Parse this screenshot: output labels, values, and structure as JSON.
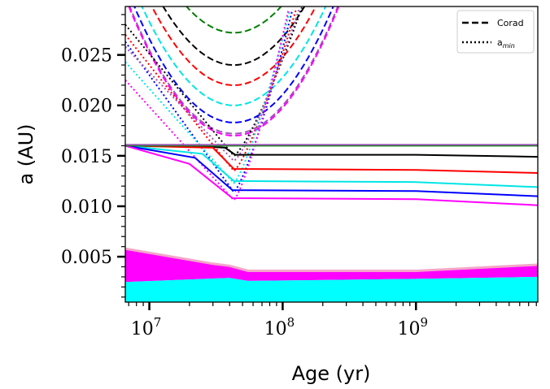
{
  "chart_data": {
    "type": "line",
    "xlabel": "Age (yr)",
    "ylabel": "a (AU)",
    "xscale": "log",
    "xlim": [
      6600000,
      8200000000
    ],
    "ylim": [
      0.0005,
      0.0298
    ],
    "x_ticks": [
      {
        "value": 10000000,
        "mantissa": "10",
        "exponent": "7"
      },
      {
        "value": 100000000,
        "mantissa": "10",
        "exponent": "8"
      },
      {
        "value": 1000000000,
        "mantissa": "10",
        "exponent": "9"
      }
    ],
    "y_ticks": [
      {
        "value": 0.005,
        "label": "0.005"
      },
      {
        "value": 0.01,
        "label": "0.010"
      },
      {
        "value": 0.015,
        "label": "0.015"
      },
      {
        "value": 0.02,
        "label": "0.020"
      },
      {
        "value": 0.025,
        "label": "0.025"
      }
    ],
    "legend": {
      "placement": "top-right",
      "entries": [
        {
          "label": "Corad",
          "style": "dashed",
          "subscript": ""
        },
        {
          "label": "a",
          "subscript": "min",
          "style": "dotted"
        }
      ]
    },
    "grid": false,
    "corotation_lines": [
      {
        "color": "#008000",
        "min_x": 43000000,
        "min_y": 0.0272,
        "solid_y": 0.016
      },
      {
        "color": "#000000",
        "min_x": 43000000,
        "min_y": 0.024,
        "solid_y": 0.015
      },
      {
        "color": "#ff0000",
        "min_x": 43000000,
        "min_y": 0.022,
        "solid_y": 0.0135
      },
      {
        "color": "#0000ff",
        "min_x": 43000000,
        "min_y": 0.0183,
        "solid_y": 0.0114
      },
      {
        "color": "#00e5e5",
        "min_x": 43000000,
        "min_y": 0.02,
        "solid_y": 0.0123
      },
      {
        "color": "#9b59b6",
        "min_x": 43000000,
        "min_y": 0.0172,
        "solid_y": 0.016
      },
      {
        "color": "#ff00ff",
        "min_x": 43000000,
        "min_y": 0.017,
        "solid_y": 0.0106
      }
    ],
    "amin_lines": [
      {
        "color": "#000000",
        "y0": 0.028,
        "min_x": 43000000,
        "min_y": 0.015,
        "right_x": 140000000,
        "right_y": 0.0298
      },
      {
        "color": "#ff0000",
        "y0": 0.027,
        "min_x": 43000000,
        "min_y": 0.0135,
        "right_x": 128000000,
        "right_y": 0.0298
      },
      {
        "color": "#0000ff",
        "y0": 0.0263,
        "min_x": 43000000,
        "min_y": 0.0114,
        "right_x": 120000000,
        "right_y": 0.0298
      },
      {
        "color": "#00e5e5",
        "y0": 0.0243,
        "min_x": 43000000,
        "min_y": 0.0123,
        "right_x": 115000000,
        "right_y": 0.0298
      },
      {
        "color": "#9b59b6",
        "y0": 0.0258,
        "min_x": 43000000,
        "min_y": 0.0145,
        "right_x": 135000000,
        "right_y": 0.0298
      },
      {
        "color": "#ff00ff",
        "y0": 0.0225,
        "min_x": 43000000,
        "min_y": 0.0106,
        "right_x": 112000000,
        "right_y": 0.0298
      }
    ],
    "solid_lines": [
      {
        "color": "#000000",
        "points": [
          [
            6600000,
            0.016
          ],
          [
            20000000,
            0.016
          ],
          [
            37000000,
            0.0158
          ],
          [
            44000000,
            0.0151
          ],
          [
            1000000000,
            0.0151
          ],
          [
            8200000000,
            0.0149
          ]
        ]
      },
      {
        "color": "#ff0000",
        "points": [
          [
            6600000,
            0.016
          ],
          [
            30000000,
            0.0158
          ],
          [
            43000000,
            0.0137
          ],
          [
            1000000000,
            0.0136
          ],
          [
            8200000000,
            0.0133
          ]
        ]
      },
      {
        "color": "#00e5e5",
        "points": [
          [
            6600000,
            0.016
          ],
          [
            25000000,
            0.0152
          ],
          [
            43000000,
            0.0125
          ],
          [
            1000000000,
            0.0124
          ],
          [
            8200000000,
            0.0119
          ]
        ]
      },
      {
        "color": "#0000ff",
        "points": [
          [
            6600000,
            0.016
          ],
          [
            22000000,
            0.0148
          ],
          [
            42000000,
            0.0116
          ],
          [
            1000000000,
            0.0115
          ],
          [
            8200000000,
            0.011
          ]
        ]
      },
      {
        "color": "#ff00ff",
        "points": [
          [
            6600000,
            0.016
          ],
          [
            20000000,
            0.0142
          ],
          [
            42000000,
            0.0108
          ],
          [
            1000000000,
            0.0107
          ],
          [
            8200000000,
            0.0101
          ]
        ]
      },
      {
        "color": "#008000",
        "points": [
          [
            6600000,
            0.016
          ],
          [
            8200000000,
            0.016
          ]
        ]
      },
      {
        "color": "#9b59b6",
        "points": [
          [
            6600000,
            0.0161
          ],
          [
            8200000000,
            0.0161
          ]
        ]
      }
    ],
    "filled_bands": [
      {
        "color": "#ff00ff",
        "upper": [
          [
            6600000,
            0.0058
          ],
          [
            30000000,
            0.0043
          ],
          [
            40000000,
            0.0041
          ],
          [
            55000000,
            0.0036
          ],
          [
            1000000000,
            0.0036
          ],
          [
            8200000000,
            0.0042
          ]
        ],
        "lower": [
          [
            6600000,
            0.0025
          ],
          [
            40000000,
            0.0029
          ],
          [
            55000000,
            0.0026
          ],
          [
            1000000000,
            0.0028
          ],
          [
            8200000000,
            0.003
          ]
        ]
      },
      {
        "color": "#00ffff",
        "upper": [
          [
            6600000,
            0.0025
          ],
          [
            40000000,
            0.0029
          ],
          [
            55000000,
            0.0026
          ],
          [
            1000000000,
            0.0028
          ],
          [
            8200000000,
            0.003
          ]
        ],
        "lower": [
          [
            6600000,
            0.0005
          ],
          [
            8200000000,
            0.0005
          ]
        ]
      }
    ]
  }
}
